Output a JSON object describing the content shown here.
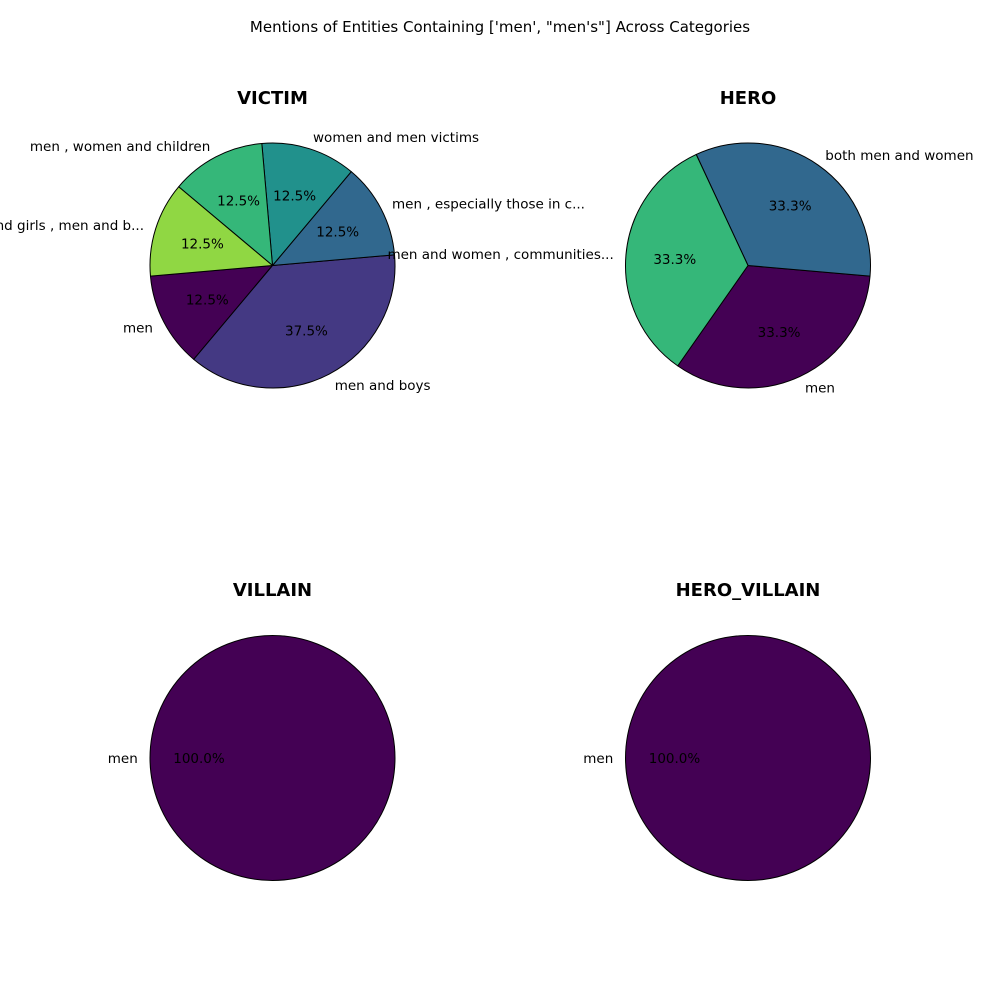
{
  "chart_data": {
    "title": "Mentions of Entities Containing ['men', \"men's\"] Across Categories",
    "charts": [
      {
        "type": "pie",
        "title": "VICTIM",
        "slices": [
          {
            "label": "men",
            "pct_label": "12.5%",
            "value": 12.5,
            "color": "#440154"
          },
          {
            "label": "men and boys",
            "pct_label": "37.5%",
            "value": 37.5,
            "color": "#443983"
          },
          {
            "label": "men , especially those in c...",
            "pct_label": "12.5%",
            "value": 12.5,
            "color": "#31688e"
          },
          {
            "label": "women and men victims",
            "pct_label": "12.5%",
            "value": 12.5,
            "color": "#21918c"
          },
          {
            "label": "men , women and children",
            "pct_label": "12.5%",
            "value": 12.5,
            "color": "#35b779"
          },
          {
            "label": "women and girls , men and b...",
            "pct_label": "12.5%",
            "value": 12.5,
            "color": "#90d743"
          }
        ]
      },
      {
        "type": "pie",
        "title": "HERO",
        "slices": [
          {
            "label": "men",
            "pct_label": "33.3%",
            "value": 33.3,
            "color": "#440154"
          },
          {
            "label": "both men and women",
            "pct_label": "33.3%",
            "value": 33.3,
            "color": "#31688e"
          },
          {
            "label": "men and women , communities...",
            "pct_label": "33.3%",
            "value": 33.3,
            "color": "#35b779"
          }
        ]
      },
      {
        "type": "pie",
        "title": "VILLAIN",
        "slices": [
          {
            "label": "men",
            "pct_label": "100.0%",
            "value": 100,
            "color": "#440154"
          }
        ]
      },
      {
        "type": "pie",
        "title": "HERO_VILLAIN",
        "slices": [
          {
            "label": "men",
            "pct_label": "100.0%",
            "value": 100,
            "color": "#440154"
          }
        ]
      }
    ]
  }
}
